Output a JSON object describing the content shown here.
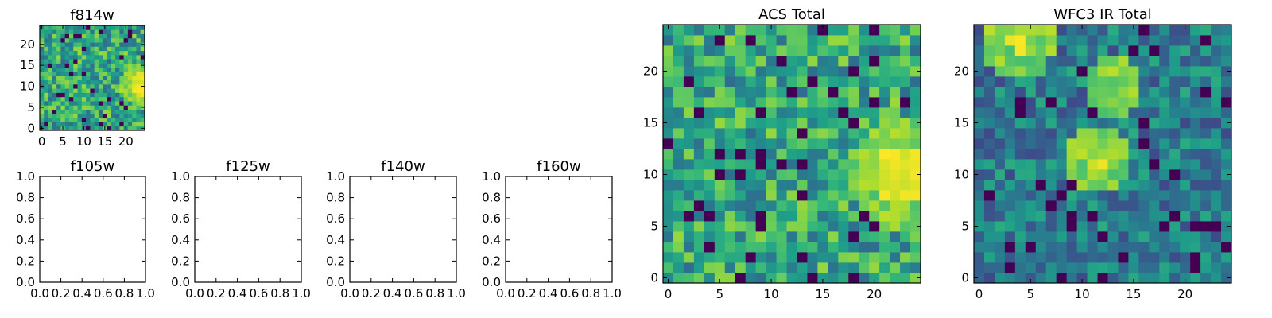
{
  "figure": {
    "panels": [
      {
        "id": "f814w",
        "title": "f814w",
        "kind": "image",
        "seed": 11,
        "hot": [
          {
            "cx": 23.6,
            "cy": 10.5,
            "r": 2.6
          }
        ],
        "xticks": [
          0,
          5,
          10,
          15,
          20
        ],
        "yticks": [
          0,
          5,
          10,
          15,
          20
        ]
      },
      {
        "id": "f105w",
        "title": "f105w",
        "kind": "empty",
        "xticks": [
          "0.0",
          "0.2",
          "0.4",
          "0.6",
          "0.8",
          "1.0"
        ],
        "yticks": [
          "0.0",
          "0.2",
          "0.4",
          "0.6",
          "0.8",
          "1.0"
        ]
      },
      {
        "id": "f125w",
        "title": "f125w",
        "kind": "empty",
        "xticks": [
          "0.0",
          "0.2",
          "0.4",
          "0.6",
          "0.8",
          "1.0"
        ],
        "yticks": [
          "0.0",
          "0.2",
          "0.4",
          "0.6",
          "0.8",
          "1.0"
        ]
      },
      {
        "id": "f140w",
        "title": "f140w",
        "kind": "empty",
        "xticks": [
          "0.0",
          "0.2",
          "0.4",
          "0.6",
          "0.8",
          "1.0"
        ],
        "yticks": [
          "0.0",
          "0.2",
          "0.4",
          "0.6",
          "0.8",
          "1.0"
        ]
      },
      {
        "id": "f160w",
        "title": "f160w",
        "kind": "empty",
        "xticks": [
          "0.0",
          "0.2",
          "0.4",
          "0.6",
          "0.8",
          "1.0"
        ],
        "yticks": [
          "0.0",
          "0.2",
          "0.4",
          "0.6",
          "0.8",
          "1.0"
        ]
      },
      {
        "id": "acs",
        "title": "ACS Total",
        "kind": "image",
        "seed": 29,
        "hot": [
          {
            "cx": 23.0,
            "cy": 10.0,
            "r": 3.0
          }
        ],
        "xticks": [
          0,
          5,
          10,
          15,
          20
        ],
        "yticks": [
          0,
          5,
          10,
          15,
          20
        ]
      },
      {
        "id": "wfc3",
        "title": "WFC3 IR Total",
        "kind": "image",
        "seed": 47,
        "low": true,
        "hot": [
          {
            "cx": 3.8,
            "cy": 22.8,
            "r": 1.1
          },
          {
            "cx": 11.5,
            "cy": 11.3,
            "r": 0.8
          },
          {
            "cx": 13,
            "cy": 18.5,
            "r": 0.5
          }
        ],
        "xticks": [
          0,
          5,
          10,
          15,
          20
        ],
        "yticks": [
          0,
          5,
          10,
          15,
          20
        ]
      }
    ]
  },
  "chart_data": [
    {
      "type": "heatmap",
      "title": "f814w",
      "x_range": [
        -0.5,
        24.5
      ],
      "y_range": [
        -0.5,
        24.5
      ],
      "grid_size": [
        25,
        25
      ],
      "colormap": "viridis",
      "bright_region": "right edge near y≈10"
    },
    {
      "type": "scatter",
      "title": "f105w",
      "x": [],
      "y": [],
      "xlim": [
        0,
        1
      ],
      "ylim": [
        0,
        1
      ]
    },
    {
      "type": "scatter",
      "title": "f125w",
      "x": [],
      "y": [],
      "xlim": [
        0,
        1
      ],
      "ylim": [
        0,
        1
      ]
    },
    {
      "type": "scatter",
      "title": "f140w",
      "x": [],
      "y": [],
      "xlim": [
        0,
        1
      ],
      "ylim": [
        0,
        1
      ]
    },
    {
      "type": "scatter",
      "title": "f160w",
      "x": [],
      "y": [],
      "xlim": [
        0,
        1
      ],
      "ylim": [
        0,
        1
      ]
    },
    {
      "type": "heatmap",
      "title": "ACS Total",
      "x_range": [
        -0.5,
        24.5
      ],
      "y_range": [
        -0.5,
        24.5
      ],
      "grid_size": [
        25,
        25
      ],
      "colormap": "viridis",
      "bright_region": "x≈20-24, y≈7-14"
    },
    {
      "type": "heatmap",
      "title": "WFC3 IR Total",
      "x_range": [
        -0.5,
        24.5
      ],
      "y_range": [
        -0.5,
        24.5
      ],
      "grid_size": [
        25,
        25
      ],
      "colormap": "viridis",
      "bright_region": "x≈3-4, y≈22-24; x≈11-12, y≈10-12"
    }
  ]
}
